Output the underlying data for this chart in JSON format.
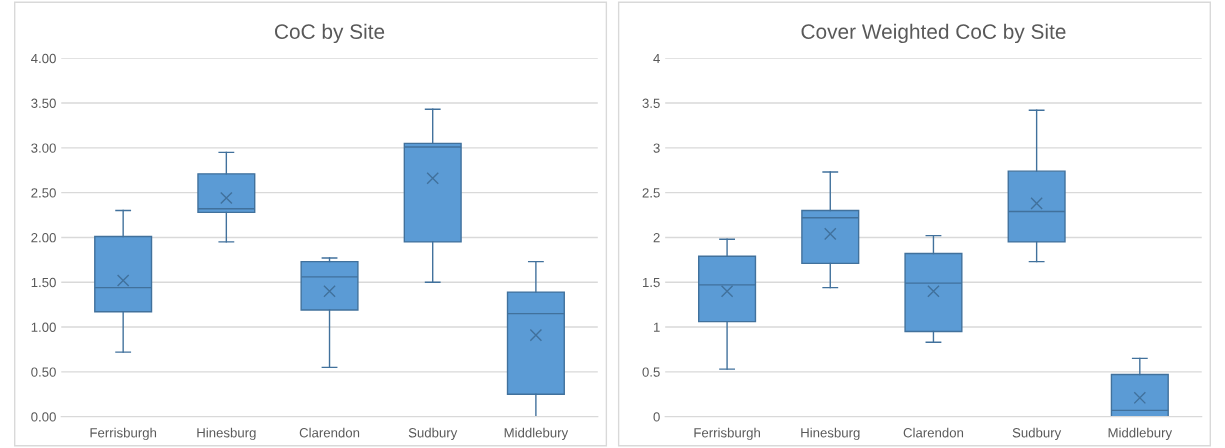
{
  "chart_data": [
    {
      "type": "box",
      "title": "CoC by Site",
      "categories": [
        "Ferrisburgh",
        "Hinesburg",
        "Clarendon",
        "Sudbury",
        "Middlebury"
      ],
      "color": "#5b9bd5",
      "boxes": [
        {
          "low": 0.72,
          "q1": 1.17,
          "median": 1.44,
          "q3": 2.01,
          "high": 2.3,
          "mean": 1.52
        },
        {
          "low": 1.95,
          "q1": 2.28,
          "median": 2.32,
          "q3": 2.71,
          "high": 2.95,
          "mean": 2.44
        },
        {
          "low": 0.55,
          "q1": 1.19,
          "median": 1.56,
          "q3": 1.73,
          "high": 1.77,
          "mean": 1.4
        },
        {
          "low": 1.5,
          "q1": 1.95,
          "median": 3.01,
          "q3": 3.05,
          "high": 3.43,
          "mean": 2.66
        },
        {
          "low": 0.0,
          "q1": 0.25,
          "median": 1.15,
          "q3": 1.39,
          "high": 1.73,
          "mean": 0.91
        }
      ],
      "ylim": [
        0,
        4
      ],
      "yticks": [
        {
          "value": 0,
          "label": "0.00"
        },
        {
          "value": 0.5,
          "label": "0.50"
        },
        {
          "value": 1,
          "label": "1.00"
        },
        {
          "value": 1.5,
          "label": "1.50"
        },
        {
          "value": 2,
          "label": "2.00"
        },
        {
          "value": 2.5,
          "label": "2.50"
        },
        {
          "value": 3,
          "label": "3.00"
        },
        {
          "value": 3.5,
          "label": "3.50"
        },
        {
          "value": 4,
          "label": "4.00"
        }
      ],
      "grid": "y"
    },
    {
      "type": "box",
      "title": "Cover Weighted CoC by Site",
      "categories": [
        "Ferrisburgh",
        "Hinesburg",
        "Clarendon",
        "Sudbury",
        "Middlebury"
      ],
      "color": "#5b9bd5",
      "boxes": [
        {
          "low": 0.53,
          "q1": 1.06,
          "median": 1.47,
          "q3": 1.79,
          "high": 1.98,
          "mean": 1.4
        },
        {
          "low": 1.44,
          "q1": 1.71,
          "median": 2.22,
          "q3": 2.3,
          "high": 2.73,
          "mean": 2.04
        },
        {
          "low": 0.83,
          "q1": 0.95,
          "median": 1.49,
          "q3": 1.82,
          "high": 2.02,
          "mean": 1.4
        },
        {
          "low": 1.73,
          "q1": 1.95,
          "median": 2.29,
          "q3": 2.74,
          "high": 3.42,
          "mean": 2.38
        },
        {
          "low": 0.0,
          "q1": 0.0,
          "median": 0.07,
          "q3": 0.47,
          "high": 0.65,
          "mean": 0.21
        }
      ],
      "ylim": [
        0,
        4
      ],
      "yticks": [
        0,
        0.5,
        1,
        1.5,
        2,
        2.5,
        3,
        3.5,
        4
      ],
      "grid": "y"
    }
  ]
}
